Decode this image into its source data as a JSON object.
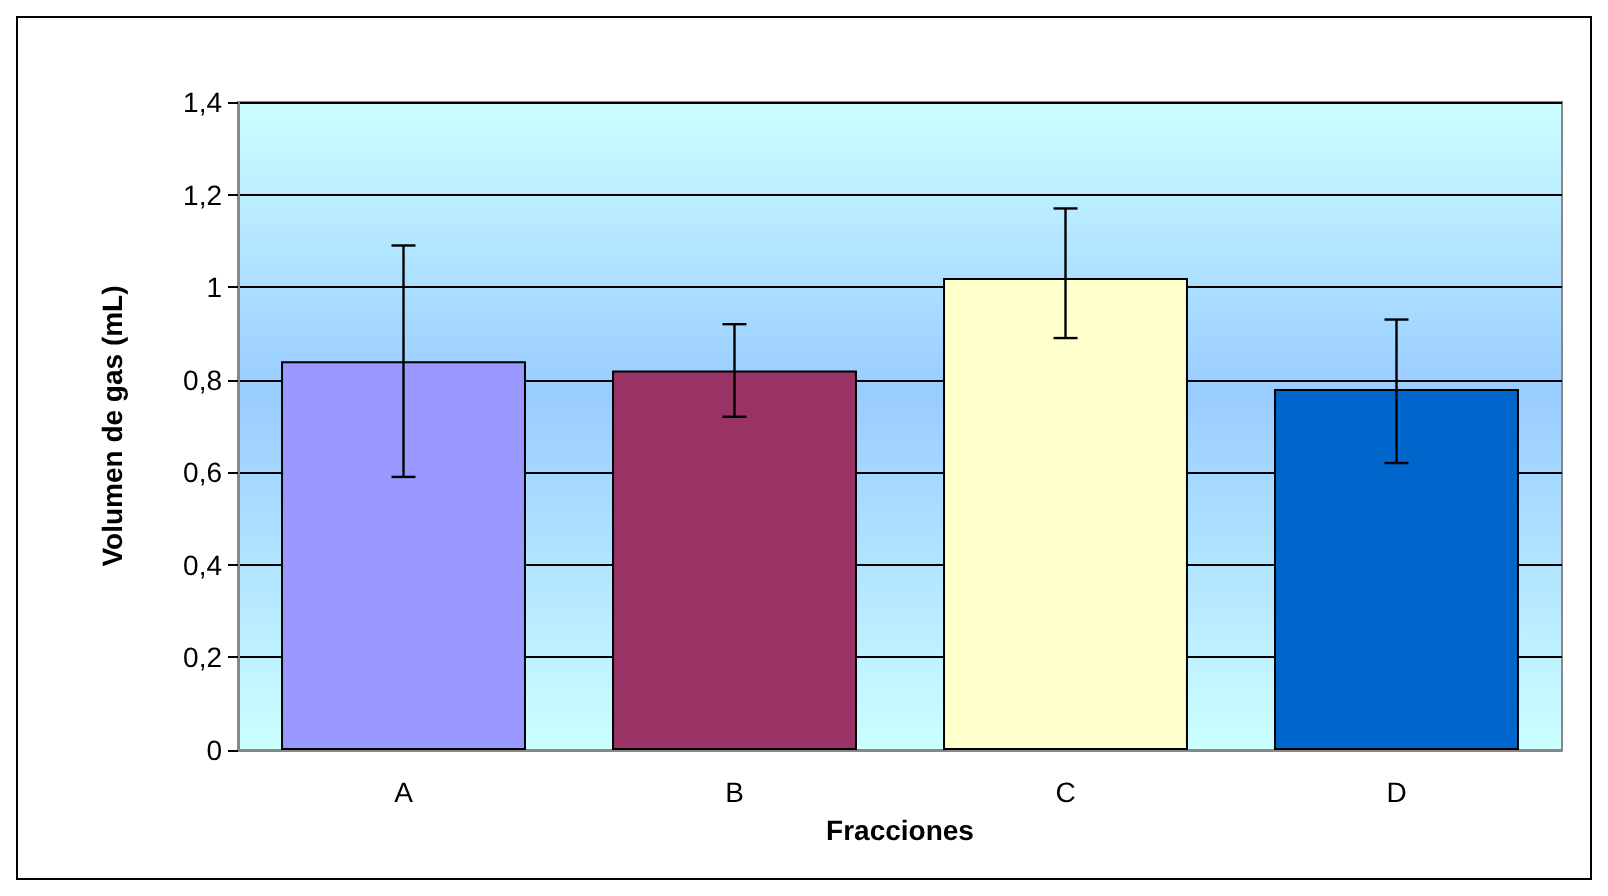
{
  "chart_data": {
    "type": "bar",
    "xlabel": "Fracciones",
    "ylabel": "Volumen de gas (mL)",
    "categories": [
      "A",
      "B",
      "C",
      "D"
    ],
    "values": [
      0.84,
      0.82,
      1.02,
      0.78
    ],
    "colors": [
      "#9999ff",
      "#993366",
      "#ffffcc",
      "#0066cc"
    ],
    "errors": [
      [
        0.59,
        1.09
      ],
      [
        0.72,
        0.92
      ],
      [
        0.89,
        1.17
      ],
      [
        0.62,
        0.93
      ]
    ],
    "ylim": [
      0,
      1.4
    ],
    "yticks": [
      {
        "value": 0,
        "label": "0"
      },
      {
        "value": 0.2,
        "label": "0,2"
      },
      {
        "value": 0.4,
        "label": "0,4"
      },
      {
        "value": 0.6,
        "label": "0,6"
      },
      {
        "value": 0.8,
        "label": "0,8"
      },
      {
        "value": 1,
        "label": "1"
      },
      {
        "value": 1.2,
        "label": "1,2"
      },
      {
        "value": 1.4,
        "label": "1,4"
      }
    ],
    "grid": "y"
  }
}
